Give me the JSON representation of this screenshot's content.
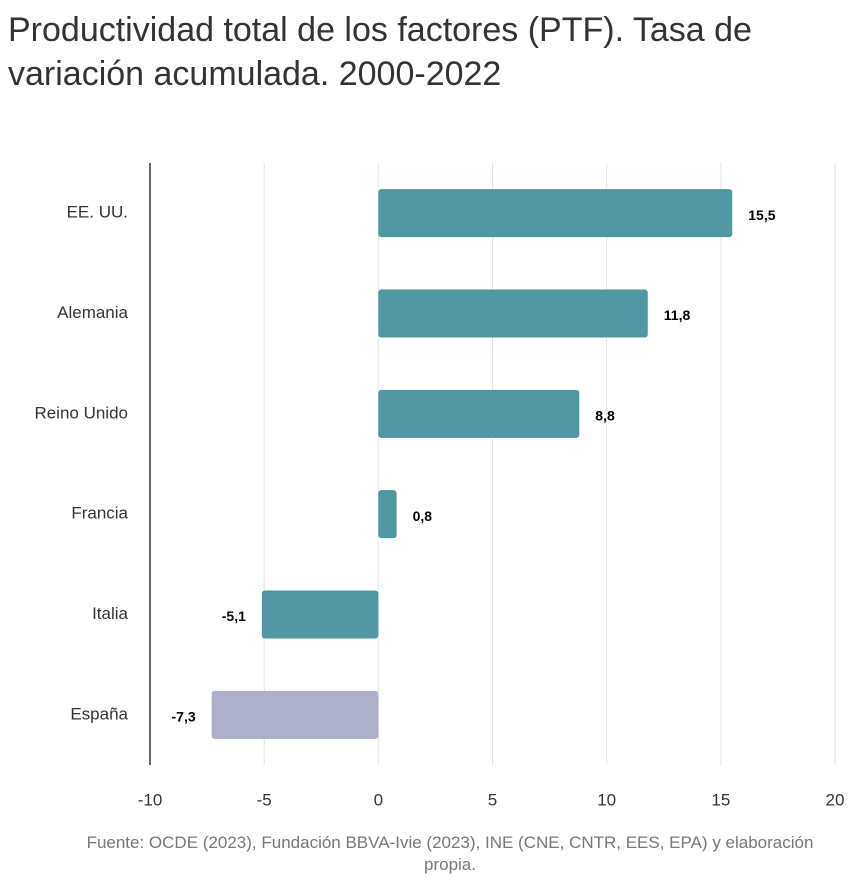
{
  "chart_data": {
    "type": "hbar",
    "title": "Productividad total de los factores (PTF). Tasa de variación acumulada. 2000-2022",
    "categories": [
      "EE. UU.",
      "Alemania",
      "Reino Unido",
      "Francia",
      "Italia",
      "España"
    ],
    "values": [
      15.5,
      11.8,
      8.8,
      0.8,
      -5.1,
      -7.3
    ],
    "value_labels": [
      "15,5",
      "11,8",
      "8,8",
      "0,8",
      "-5,1",
      "-7,3"
    ],
    "colors": [
      "#5096a3",
      "#5096a3",
      "#5096a3",
      "#5096a3",
      "#5096a3",
      "#adb0c8"
    ],
    "xlim": [
      -10,
      20
    ],
    "xticks": [
      -10,
      -5,
      0,
      5,
      10,
      15,
      20
    ],
    "grid": true,
    "source": "Fuente: OCDE (2023), Fundación BBVA-Ivie (2023), INE (CNE, CNTR, EES, EPA) y elaboración propia."
  }
}
